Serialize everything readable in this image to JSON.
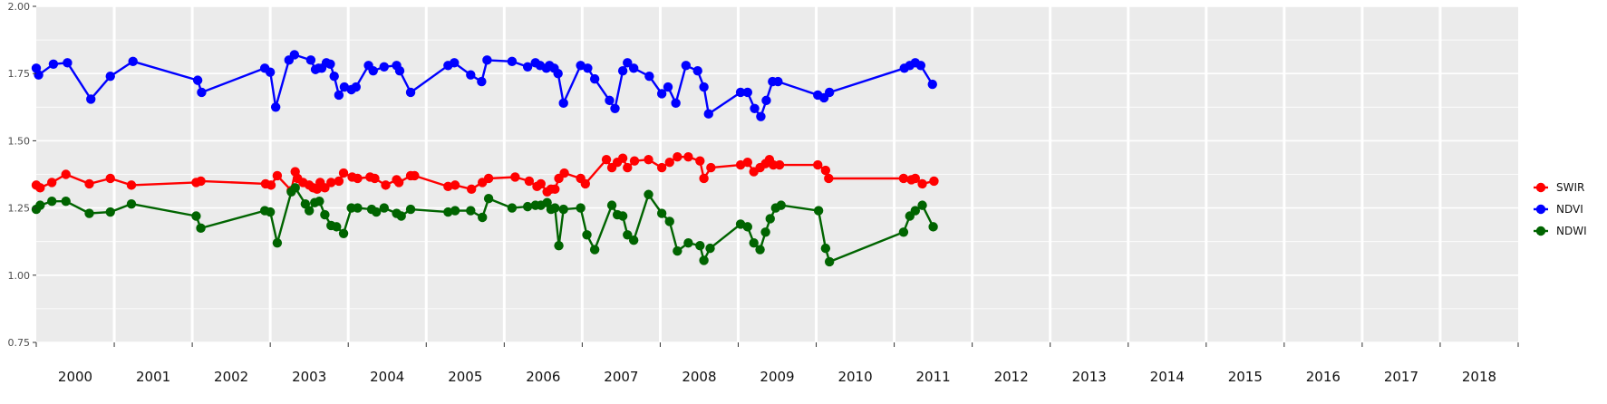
{
  "chart_data": {
    "type": "line",
    "title": "",
    "xlabel": "",
    "ylabel": "",
    "xlim": [
      2000.0,
      2019.0
    ],
    "ylim": [
      0.75,
      2.0
    ],
    "grid": true,
    "legend_position": "right",
    "y_ticks": [
      "0.75",
      "1.00",
      "1.25",
      "1.50",
      "1.75",
      "2.00"
    ],
    "year_labels": [
      "2000",
      "2001",
      "2002",
      "2003",
      "2004",
      "2005",
      "2006",
      "2007",
      "2008",
      "2009",
      "2010",
      "2011",
      "2012",
      "2013",
      "2014",
      "2015",
      "2016",
      "2017",
      "2018"
    ],
    "series": [
      {
        "name": "SWIR",
        "color": "#ff0000",
        "x": [
          2000.0,
          2000.05,
          2000.2,
          2000.38,
          2000.68,
          2000.95,
          2001.22,
          2002.05,
          2002.11,
          2002.94,
          2003.01,
          2003.09,
          2003.27,
          2003.32,
          2003.35,
          2003.42,
          2003.5,
          2003.55,
          2003.6,
          2003.64,
          2003.7,
          2003.78,
          2003.88,
          2003.94,
          2004.05,
          2004.12,
          2004.28,
          2004.34,
          2004.48,
          2004.62,
          2004.65,
          2004.8,
          2004.85,
          2005.28,
          2005.37,
          2005.58,
          2005.72,
          2005.8,
          2006.14,
          2006.32,
          2006.42,
          2006.47,
          2006.55,
          2006.6,
          2006.65,
          2006.7,
          2006.77,
          2006.98,
          2007.04,
          2007.31,
          2007.38,
          2007.45,
          2007.52,
          2007.58,
          2007.67,
          2007.85,
          2008.02,
          2008.12,
          2008.22,
          2008.36,
          2008.51,
          2008.56,
          2008.65,
          2009.03,
          2009.12,
          2009.2,
          2009.28,
          2009.35,
          2009.4,
          2009.45,
          2009.53,
          2010.02,
          2010.12,
          2010.16,
          2011.12,
          2011.22,
          2011.27,
          2011.36,
          2011.51
        ],
        "values": [
          1.335,
          1.325,
          1.345,
          1.375,
          1.34,
          1.36,
          1.335,
          1.345,
          1.35,
          1.34,
          1.335,
          1.37,
          1.315,
          1.385,
          1.36,
          1.345,
          1.335,
          1.325,
          1.32,
          1.345,
          1.325,
          1.345,
          1.35,
          1.38,
          1.365,
          1.36,
          1.365,
          1.36,
          1.335,
          1.355,
          1.345,
          1.37,
          1.37,
          1.33,
          1.335,
          1.32,
          1.345,
          1.36,
          1.365,
          1.35,
          1.33,
          1.34,
          1.31,
          1.32,
          1.32,
          1.36,
          1.38,
          1.36,
          1.34,
          1.43,
          1.4,
          1.42,
          1.435,
          1.4,
          1.425,
          1.43,
          1.4,
          1.42,
          1.44,
          1.44,
          1.425,
          1.36,
          1.4,
          1.41,
          1.42,
          1.385,
          1.4,
          1.415,
          1.43,
          1.41,
          1.41,
          1.41,
          1.39,
          1.36,
          1.36,
          1.355,
          1.36,
          1.34,
          1.35
        ]
      },
      {
        "name": "NDVI",
        "color": "#0000ff",
        "x": [
          2000.0,
          2000.03,
          2000.22,
          2000.4,
          2000.7,
          2000.95,
          2001.24,
          2002.07,
          2002.12,
          2002.93,
          2003.0,
          2003.07,
          2003.24,
          2003.31,
          2003.52,
          2003.58,
          2003.62,
          2003.66,
          2003.72,
          2003.77,
          2003.82,
          2003.88,
          2003.95,
          2004.04,
          2004.1,
          2004.26,
          2004.32,
          2004.46,
          2004.62,
          2004.66,
          2004.8,
          2005.28,
          2005.36,
          2005.57,
          2005.71,
          2005.78,
          2006.1,
          2006.3,
          2006.4,
          2006.46,
          2006.54,
          2006.58,
          2006.64,
          2006.69,
          2006.76,
          2006.98,
          2007.07,
          2007.16,
          2007.35,
          2007.42,
          2007.52,
          2007.58,
          2007.66,
          2007.86,
          2008.02,
          2008.1,
          2008.2,
          2008.33,
          2008.48,
          2008.56,
          2008.62,
          2009.03,
          2009.12,
          2009.21,
          2009.29,
          2009.36,
          2009.44,
          2009.51,
          2010.02,
          2010.1,
          2010.17,
          2011.13,
          2011.2,
          2011.27,
          2011.34,
          2011.49
        ],
        "values": [
          1.77,
          1.745,
          1.785,
          1.79,
          1.655,
          1.74,
          1.795,
          1.725,
          1.68,
          1.77,
          1.755,
          1.625,
          1.8,
          1.82,
          1.8,
          1.765,
          1.77,
          1.77,
          1.79,
          1.785,
          1.74,
          1.67,
          1.7,
          1.69,
          1.7,
          1.78,
          1.76,
          1.775,
          1.78,
          1.76,
          1.68,
          1.78,
          1.79,
          1.745,
          1.72,
          1.8,
          1.795,
          1.775,
          1.79,
          1.78,
          1.77,
          1.78,
          1.77,
          1.75,
          1.64,
          1.78,
          1.77,
          1.73,
          1.65,
          1.62,
          1.76,
          1.79,
          1.77,
          1.74,
          1.675,
          1.7,
          1.64,
          1.78,
          1.76,
          1.7,
          1.6,
          1.68,
          1.68,
          1.62,
          1.59,
          1.65,
          1.72,
          1.72,
          1.67,
          1.66,
          1.68,
          1.77,
          1.78,
          1.79,
          1.78,
          1.71
        ]
      },
      {
        "name": "NDWI",
        "color": "#006400",
        "x": [
          2000.0,
          2000.05,
          2000.2,
          2000.38,
          2000.68,
          2000.95,
          2001.22,
          2002.05,
          2002.11,
          2002.93,
          2003.0,
          2003.09,
          2003.27,
          2003.32,
          2003.45,
          2003.5,
          2003.57,
          2003.63,
          2003.7,
          2003.78,
          2003.85,
          2003.94,
          2004.04,
          2004.12,
          2004.3,
          2004.36,
          2004.46,
          2004.62,
          2004.68,
          2004.8,
          2005.28,
          2005.37,
          2005.57,
          2005.72,
          2005.8,
          2006.1,
          2006.3,
          2006.4,
          2006.47,
          2006.55,
          2006.6,
          2006.65,
          2006.7,
          2006.76,
          2006.98,
          2007.06,
          2007.16,
          2007.38,
          2007.45,
          2007.52,
          2007.58,
          2007.66,
          2007.85,
          2008.02,
          2008.12,
          2008.22,
          2008.36,
          2008.51,
          2008.56,
          2008.64,
          2009.03,
          2009.12,
          2009.2,
          2009.28,
          2009.35,
          2009.41,
          2009.48,
          2009.55,
          2010.03,
          2010.12,
          2010.17,
          2011.12,
          2011.2,
          2011.27,
          2011.36,
          2011.5
        ],
        "values": [
          1.245,
          1.26,
          1.275,
          1.275,
          1.23,
          1.235,
          1.265,
          1.22,
          1.175,
          1.24,
          1.235,
          1.12,
          1.31,
          1.325,
          1.265,
          1.24,
          1.27,
          1.275,
          1.225,
          1.185,
          1.18,
          1.155,
          1.25,
          1.25,
          1.245,
          1.235,
          1.25,
          1.23,
          1.22,
          1.245,
          1.235,
          1.24,
          1.24,
          1.215,
          1.285,
          1.25,
          1.255,
          1.26,
          1.26,
          1.27,
          1.245,
          1.25,
          1.11,
          1.245,
          1.25,
          1.15,
          1.095,
          1.26,
          1.225,
          1.22,
          1.15,
          1.13,
          1.3,
          1.23,
          1.2,
          1.09,
          1.12,
          1.11,
          1.055,
          1.1,
          1.19,
          1.18,
          1.12,
          1.095,
          1.16,
          1.21,
          1.25,
          1.26,
          1.24,
          1.1,
          1.05,
          1.16,
          1.22,
          1.24,
          1.26,
          1.18
        ]
      }
    ]
  }
}
